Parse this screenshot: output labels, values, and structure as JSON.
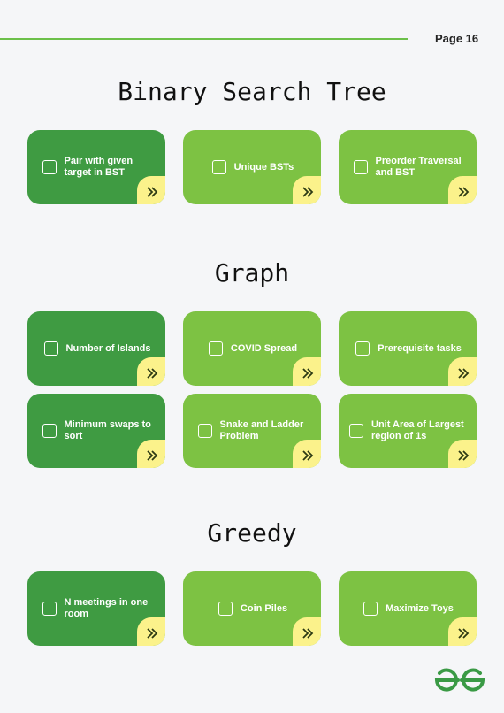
{
  "header": {
    "page_label": "Page 16"
  },
  "sections": [
    {
      "title": "Binary Search Tree",
      "cards": [
        "Pair with given target in BST",
        "Unique BSTs",
        "Preorder Traversal and BST"
      ]
    },
    {
      "title": "Graph",
      "cards": [
        "Number of Islands",
        "COVID Spread",
        "Prerequisite tasks",
        "Minimum swaps to sort",
        "Snake and Ladder Problem",
        "Unit Area of Largest region of 1s"
      ]
    },
    {
      "title": "Greedy",
      "cards": [
        "N meetings in one room",
        "Coin Piles",
        "Maximize Toys"
      ]
    }
  ],
  "icons": {
    "card_arrow": "double-chevron-right-icon",
    "checkbox": "checkbox-icon",
    "logo": "gfg-logo"
  },
  "colors": {
    "accent_line": "#6cc04a",
    "card_dark": "#3f9b42",
    "card_light": "#7dc243",
    "corner": "#fbf28b",
    "logo": "#3a9a45"
  }
}
